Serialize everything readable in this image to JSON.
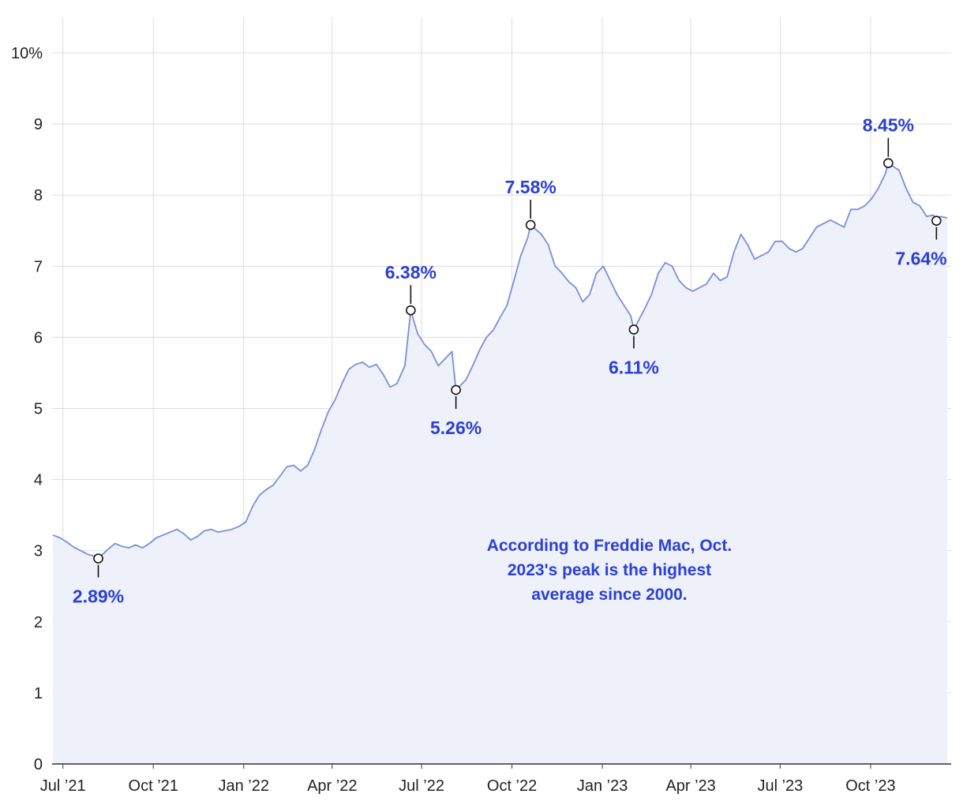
{
  "chart_data": {
    "type": "area",
    "title": "",
    "xlabel": "",
    "ylabel": "",
    "x_range": [
      "2021-06-20",
      "2023-12-22"
    ],
    "ylim": [
      0,
      10.5
    ],
    "grid": true,
    "legend": "none",
    "y_ticks": [
      {
        "value": 0,
        "label": "0"
      },
      {
        "value": 1,
        "label": "1"
      },
      {
        "value": 2,
        "label": "2"
      },
      {
        "value": 3,
        "label": "3"
      },
      {
        "value": 4,
        "label": "4"
      },
      {
        "value": 5,
        "label": "5"
      },
      {
        "value": 6,
        "label": "6"
      },
      {
        "value": 7,
        "label": "7"
      },
      {
        "value": 8,
        "label": "8"
      },
      {
        "value": 9,
        "label": "9"
      },
      {
        "value": 10,
        "label": "10%"
      }
    ],
    "x_ticks": [
      {
        "date": "2021-07-01",
        "label": "Jul ’21"
      },
      {
        "date": "2021-10-01",
        "label": "Oct ’21"
      },
      {
        "date": "2022-01-01",
        "label": "Jan ’22"
      },
      {
        "date": "2022-04-01",
        "label": "Apr ’22"
      },
      {
        "date": "2022-07-01",
        "label": "Jul ’22"
      },
      {
        "date": "2022-10-01",
        "label": "Oct ’22"
      },
      {
        "date": "2023-01-01",
        "label": "Jan ’23"
      },
      {
        "date": "2023-04-01",
        "label": "Apr ’23"
      },
      {
        "date": "2023-07-01",
        "label": "Jul ’23"
      },
      {
        "date": "2023-10-01",
        "label": "Oct ’23"
      }
    ],
    "series": [
      {
        "x": [
          "2021-06-21",
          "2021-06-28",
          "2021-07-05",
          "2021-07-12",
          "2021-07-19",
          "2021-07-26",
          "2021-08-02",
          "2021-08-06",
          "2021-08-16",
          "2021-08-23",
          "2021-08-30",
          "2021-09-06",
          "2021-09-13",
          "2021-09-20",
          "2021-09-27",
          "2021-10-04",
          "2021-10-11",
          "2021-10-18",
          "2021-10-25",
          "2021-11-01",
          "2021-11-08",
          "2021-11-15",
          "2021-11-22",
          "2021-11-29",
          "2021-12-06",
          "2021-12-13",
          "2021-12-20",
          "2021-12-27",
          "2022-01-03",
          "2022-01-10",
          "2022-01-17",
          "2022-01-24",
          "2022-01-31",
          "2022-02-07",
          "2022-02-14",
          "2022-02-21",
          "2022-02-28",
          "2022-03-07",
          "2022-03-14",
          "2022-03-21",
          "2022-03-28",
          "2022-04-04",
          "2022-04-11",
          "2022-04-18",
          "2022-04-25",
          "2022-05-02",
          "2022-05-09",
          "2022-05-16",
          "2022-05-23",
          "2022-05-30",
          "2022-06-06",
          "2022-06-14",
          "2022-06-20",
          "2022-06-27",
          "2022-07-04",
          "2022-07-11",
          "2022-07-18",
          "2022-07-25",
          "2022-08-01",
          "2022-08-05",
          "2022-08-15",
          "2022-08-22",
          "2022-08-29",
          "2022-09-05",
          "2022-09-12",
          "2022-09-19",
          "2022-09-26",
          "2022-10-03",
          "2022-10-10",
          "2022-10-17",
          "2022-10-20",
          "2022-10-31",
          "2022-11-07",
          "2022-11-14",
          "2022-11-21",
          "2022-11-28",
          "2022-12-05",
          "2022-12-12",
          "2022-12-19",
          "2022-12-26",
          "2023-01-02",
          "2023-01-09",
          "2023-01-16",
          "2023-01-23",
          "2023-01-30",
          "2023-02-02",
          "2023-02-13",
          "2023-02-20",
          "2023-02-27",
          "2023-03-06",
          "2023-03-13",
          "2023-03-20",
          "2023-03-27",
          "2023-04-03",
          "2023-04-10",
          "2023-04-17",
          "2023-04-24",
          "2023-05-01",
          "2023-05-08",
          "2023-05-15",
          "2023-05-22",
          "2023-05-29",
          "2023-06-05",
          "2023-06-12",
          "2023-06-19",
          "2023-06-26",
          "2023-07-03",
          "2023-07-10",
          "2023-07-17",
          "2023-07-24",
          "2023-07-31",
          "2023-08-07",
          "2023-08-14",
          "2023-08-21",
          "2023-08-28",
          "2023-09-04",
          "2023-09-11",
          "2023-09-18",
          "2023-09-25",
          "2023-10-02",
          "2023-10-09",
          "2023-10-16",
          "2023-10-19",
          "2023-10-30",
          "2023-11-06",
          "2023-11-13",
          "2023-11-20",
          "2023-11-27",
          "2023-12-04",
          "2023-12-07",
          "2023-12-11",
          "2023-12-18"
        ],
        "values": [
          3.22,
          3.18,
          3.12,
          3.05,
          3.0,
          2.95,
          2.92,
          2.89,
          3.02,
          3.1,
          3.06,
          3.04,
          3.08,
          3.04,
          3.1,
          3.18,
          3.22,
          3.26,
          3.3,
          3.24,
          3.15,
          3.2,
          3.28,
          3.3,
          3.26,
          3.28,
          3.3,
          3.34,
          3.4,
          3.62,
          3.78,
          3.86,
          3.92,
          4.05,
          4.18,
          4.2,
          4.12,
          4.2,
          4.42,
          4.7,
          4.95,
          5.12,
          5.35,
          5.55,
          5.62,
          5.65,
          5.58,
          5.62,
          5.48,
          5.3,
          5.35,
          5.6,
          6.38,
          6.05,
          5.9,
          5.8,
          5.6,
          5.7,
          5.8,
          5.26,
          5.4,
          5.6,
          5.82,
          6.0,
          6.1,
          6.28,
          6.45,
          6.8,
          7.15,
          7.4,
          7.58,
          7.45,
          7.3,
          7.0,
          6.9,
          6.78,
          6.7,
          6.5,
          6.6,
          6.9,
          7.0,
          6.8,
          6.6,
          6.45,
          6.3,
          6.11,
          6.4,
          6.6,
          6.9,
          7.05,
          7.0,
          6.8,
          6.7,
          6.65,
          6.7,
          6.75,
          6.9,
          6.8,
          6.85,
          7.2,
          7.45,
          7.3,
          7.1,
          7.15,
          7.2,
          7.35,
          7.35,
          7.25,
          7.2,
          7.25,
          7.4,
          7.55,
          7.6,
          7.65,
          7.6,
          7.55,
          7.8,
          7.8,
          7.85,
          7.95,
          8.1,
          8.3,
          8.45,
          8.35,
          8.1,
          7.9,
          7.85,
          7.7,
          7.72,
          7.64,
          7.7,
          7.68
        ]
      }
    ],
    "annotations": [
      {
        "date": "2021-08-06",
        "value": 2.89,
        "label": "2.89%",
        "position": "below"
      },
      {
        "date": "2022-06-20",
        "value": 6.38,
        "label": "6.38%",
        "position": "above"
      },
      {
        "date": "2022-08-05",
        "value": 5.26,
        "label": "5.26%",
        "position": "below"
      },
      {
        "date": "2022-10-20",
        "value": 7.58,
        "label": "7.58%",
        "position": "above"
      },
      {
        "date": "2023-02-02",
        "value": 6.11,
        "label": "6.11%",
        "position": "below"
      },
      {
        "date": "2023-10-19",
        "value": 8.45,
        "label": "8.45%",
        "position": "above"
      },
      {
        "date": "2023-12-07",
        "value": 7.64,
        "label": "7.64%",
        "position": "below"
      }
    ],
    "note": [
      "According to Freddie Mac, Oct.",
      "2023's peak is the highest",
      "average since 2000."
    ],
    "colors": {
      "line": "#7b8fd6",
      "fill": "#eef0fa",
      "annotation": "#2b3fd6",
      "marker_stroke": "#111111"
    }
  }
}
